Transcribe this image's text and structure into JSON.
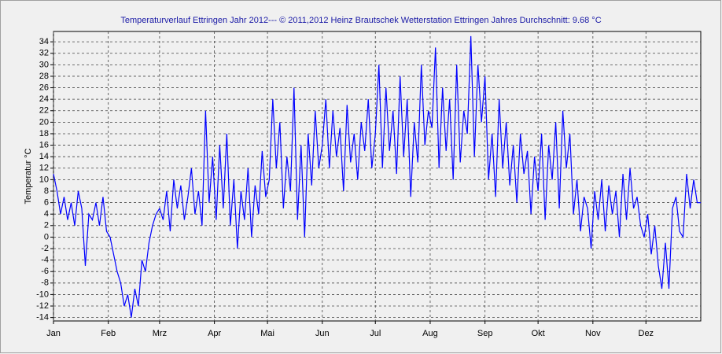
{
  "chart_data": {
    "type": "line",
    "title": "Temperaturverlauf Ettringen Jahr 2012--- © 2011,2012 Heinz Brautschek Wetterstation Ettringen Jahres Durchschnitt: 9.68 °C",
    "y_label": "Temperatur °C",
    "xlim": [
      0,
      366
    ],
    "ylim": [
      -14.6,
      35.8
    ],
    "yticks": [
      -14,
      -12,
      -10,
      -8,
      -6,
      -4,
      -2,
      0,
      2,
      4,
      6,
      8,
      10,
      12,
      14,
      16,
      18,
      20,
      22,
      24,
      26,
      28,
      30,
      32,
      34
    ],
    "xticks": [
      {
        "value": 0,
        "label": "Jan"
      },
      {
        "value": 31,
        "label": "Feb"
      },
      {
        "value": 60,
        "label": "Mrz"
      },
      {
        "value": 91,
        "label": "Apr"
      },
      {
        "value": 121,
        "label": "Mai"
      },
      {
        "value": 152,
        "label": "Jun"
      },
      {
        "value": 182,
        "label": "Jul"
      },
      {
        "value": 213,
        "label": "Aug"
      },
      {
        "value": 244,
        "label": "Sep"
      },
      {
        "value": 274,
        "label": "Okt"
      },
      {
        "value": 305,
        "label": "Nov"
      },
      {
        "value": 335,
        "label": "Dez"
      }
    ],
    "grid": true,
    "x": [
      0,
      2,
      4,
      6,
      8,
      10,
      12,
      14,
      16,
      18,
      20,
      22,
      24,
      26,
      28,
      30,
      32,
      34,
      36,
      38,
      40,
      42,
      44,
      46,
      48,
      50,
      52,
      54,
      56,
      58,
      60,
      62,
      64,
      66,
      68,
      70,
      72,
      74,
      76,
      78,
      80,
      82,
      84,
      86,
      88,
      90,
      92,
      94,
      96,
      98,
      100,
      102,
      104,
      106,
      108,
      110,
      112,
      114,
      116,
      118,
      120,
      122,
      124,
      126,
      128,
      130,
      132,
      134,
      136,
      138,
      140,
      142,
      144,
      146,
      148,
      150,
      152,
      154,
      156,
      158,
      160,
      162,
      164,
      166,
      168,
      170,
      172,
      174,
      176,
      178,
      180,
      182,
      184,
      186,
      188,
      190,
      192,
      194,
      196,
      198,
      200,
      202,
      204,
      206,
      208,
      210,
      212,
      214,
      216,
      218,
      220,
      222,
      224,
      226,
      228,
      230,
      232,
      234,
      236,
      238,
      240,
      242,
      244,
      246,
      248,
      250,
      252,
      254,
      256,
      258,
      260,
      262,
      264,
      266,
      268,
      270,
      272,
      274,
      276,
      278,
      280,
      282,
      284,
      286,
      288,
      290,
      292,
      294,
      296,
      298,
      300,
      302,
      304,
      306,
      308,
      310,
      312,
      314,
      316,
      318,
      320,
      322,
      324,
      326,
      328,
      330,
      332,
      334,
      336,
      338,
      340,
      342,
      344,
      346,
      348,
      350,
      352,
      354,
      356,
      358,
      360,
      362,
      364,
      366
    ],
    "series": [
      {
        "name": "Temperatur",
        "color": "#0000ff",
        "values": [
          11,
          8,
          4,
          7,
          3,
          6,
          2,
          8,
          5,
          -5,
          4,
          3,
          6,
          2,
          7,
          1,
          0,
          -3,
          -6,
          -8,
          -12,
          -10,
          -14,
          -9,
          -12,
          -4,
          -6,
          -1,
          2,
          4,
          5,
          3,
          8,
          1,
          10,
          5,
          9,
          3,
          7,
          12,
          4,
          8,
          2,
          22,
          6,
          14,
          3,
          16,
          5,
          18,
          2,
          10,
          -2,
          8,
          3,
          12,
          0,
          9,
          4,
          15,
          7,
          10,
          24,
          12,
          20,
          5,
          14,
          8,
          26,
          3,
          16,
          0,
          18,
          9,
          22,
          12,
          16,
          24,
          12,
          22,
          14,
          19,
          8,
          23,
          13,
          18,
          10,
          20,
          15,
          24,
          12,
          18,
          30,
          12,
          26,
          15,
          22,
          11,
          28,
          14,
          24,
          7,
          20,
          13,
          30,
          16,
          22,
          19,
          33,
          12,
          26,
          15,
          24,
          10,
          30,
          13,
          22,
          18,
          35,
          14,
          30,
          20,
          28,
          10,
          18,
          7,
          24,
          12,
          20,
          9,
          16,
          6,
          18,
          11,
          15,
          4,
          14,
          8,
          18,
          3,
          16,
          10,
          20,
          5,
          22,
          12,
          18,
          4,
          10,
          1,
          7,
          5,
          -2,
          8,
          3,
          10,
          1,
          9,
          4,
          8,
          0,
          11,
          3,
          12,
          5,
          7,
          2,
          0,
          4,
          -3,
          2,
          -5,
          -9,
          -1,
          -9,
          5,
          7,
          1,
          0,
          11,
          5,
          10,
          6,
          6
        ]
      }
    ]
  }
}
